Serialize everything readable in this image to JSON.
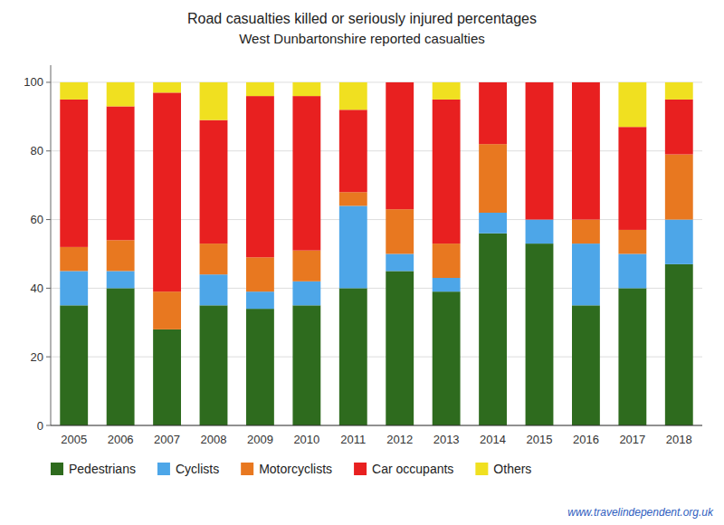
{
  "chart_data": {
    "type": "bar",
    "stacked": true,
    "title": "Road casualties killed or seriously injured percentages",
    "subtitle": "West Dunbartonshire reported casualties",
    "categories": [
      "2005",
      "2006",
      "2007",
      "2008",
      "2009",
      "2010",
      "2011",
      "2012",
      "2013",
      "2014",
      "2015",
      "2016",
      "2017",
      "2018"
    ],
    "series": [
      {
        "name": "Pedestrians",
        "color": "#2e6b1e",
        "values": [
          35,
          40,
          28,
          35,
          34,
          35,
          40,
          45,
          39,
          56,
          53,
          35,
          40,
          47
        ]
      },
      {
        "name": "Cyclists",
        "color": "#4da6e8",
        "values": [
          10,
          5,
          0,
          9,
          5,
          7,
          24,
          5,
          4,
          6,
          7,
          18,
          10,
          13
        ]
      },
      {
        "name": "Motorcyclists",
        "color": "#e87820",
        "values": [
          7,
          9,
          11,
          9,
          10,
          9,
          4,
          13,
          10,
          20,
          0,
          7,
          7,
          19
        ]
      },
      {
        "name": "Car occupants",
        "color": "#e82020",
        "values": [
          43,
          39,
          58,
          36,
          47,
          45,
          24,
          37,
          42,
          18,
          40,
          40,
          30,
          16
        ]
      },
      {
        "name": "Others",
        "color": "#f0e020",
        "values": [
          5,
          7,
          3,
          11,
          4,
          4,
          8,
          0,
          5,
          0,
          0,
          0,
          13,
          5
        ]
      }
    ],
    "ylim": [
      0,
      105
    ],
    "yticks": [
      0,
      20,
      40,
      60,
      80,
      100
    ],
    "grid": true,
    "legend": "bottom",
    "annotations": [
      "www.travelindependent.org.uk"
    ]
  }
}
